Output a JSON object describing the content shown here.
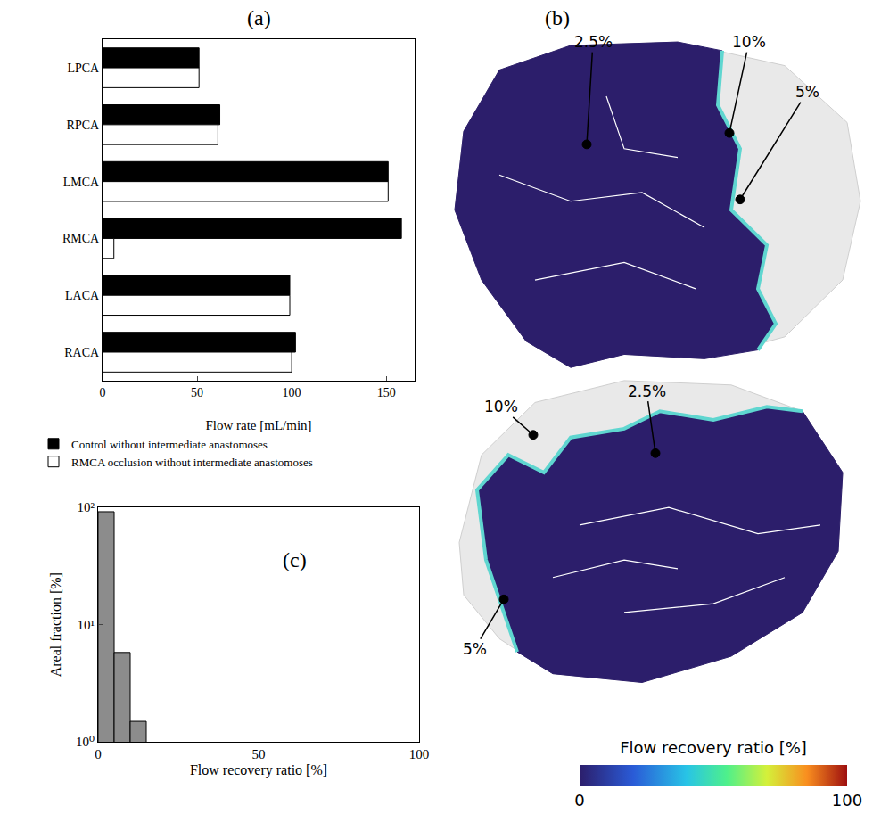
{
  "chart_data": [
    {
      "type": "bar",
      "title": "(a)",
      "orientation": "horizontal",
      "categories": [
        "LPCA",
        "RPCA",
        "LMCA",
        "RMCA",
        "LACA",
        "RACA"
      ],
      "series": [
        {
          "name": "Control without intermediate anastomoses",
          "color": "#000000",
          "values": [
            51,
            62,
            151,
            158,
            99,
            102
          ]
        },
        {
          "name": "RMCA occlusion without intermediate anastomoses",
          "color": "#ffffff",
          "values": [
            51,
            61,
            151,
            6,
            99,
            100
          ]
        }
      ],
      "xlabel": "Flow rate [mL/min]",
      "xlim": [
        0,
        165
      ],
      "xticks": [
        0,
        50,
        100,
        150
      ],
      "grid": false,
      "legend": "below"
    },
    {
      "type": "histogram",
      "title": "(c)",
      "bins": [
        0,
        5,
        10,
        15
      ],
      "values": [
        92,
        5.8,
        1.5
      ],
      "color": "#8c8c8c",
      "xlabel": "Flow recovery ratio [%]",
      "ylabel": "Areal fraction [%]",
      "xlim": [
        0,
        100
      ],
      "xticks": [
        0,
        50,
        100
      ],
      "ylim": [
        1,
        100
      ],
      "yticks": [
        {
          "value": 1,
          "label": "10⁰"
        },
        {
          "value": 10,
          "label": "10¹"
        },
        {
          "value": 100,
          "label": "10²"
        }
      ],
      "log": "y",
      "grid": false
    },
    {
      "type": "surface_map",
      "title": "(b)",
      "annotations": [
        "2.5%",
        "10%",
        "5%",
        "2.5%",
        "10%",
        "5%"
      ],
      "colorbar": {
        "title": "Flow recovery ratio [%]",
        "range": [
          0,
          100
        ],
        "ticks": [
          0,
          100
        ]
      }
    }
  ]
}
